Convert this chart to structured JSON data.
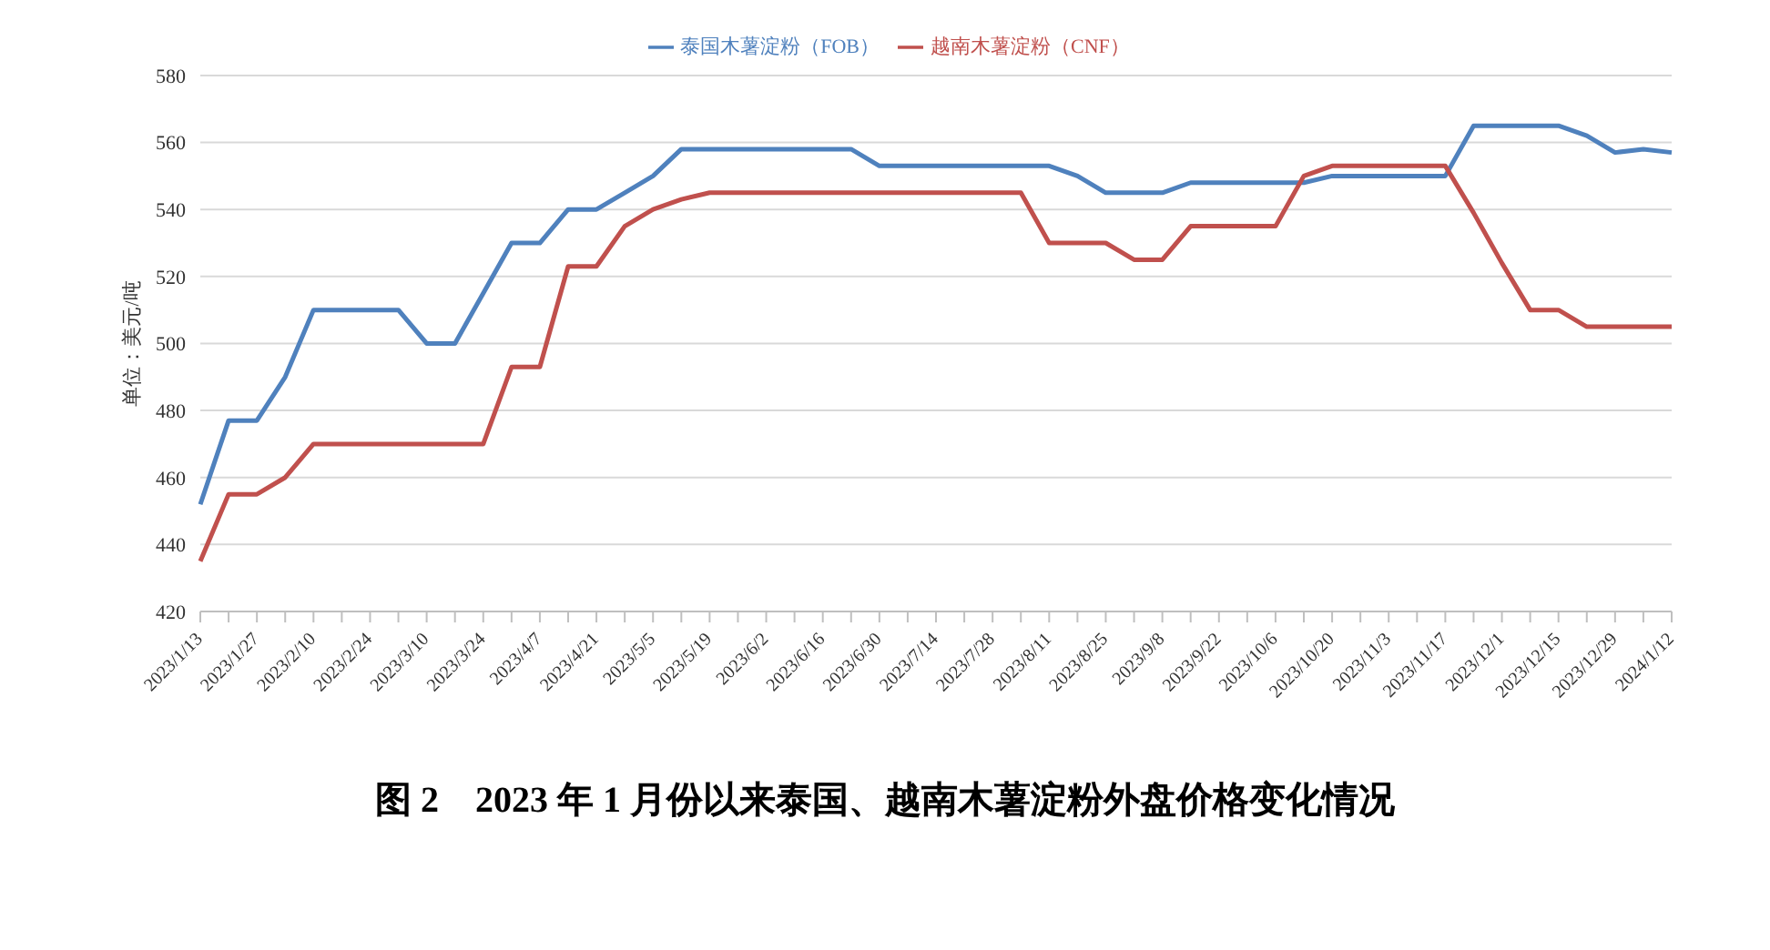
{
  "chart_data": {
    "type": "line",
    "title": "图 2　2023 年 1 月份以来泰国、越南木薯淀粉外盘价格变化情况",
    "ylabel": "单位：美元/吨",
    "categories": [
      "2023/1/13",
      null,
      "2023/1/27",
      null,
      "2023/2/10",
      null,
      "2023/2/24",
      null,
      "2023/3/10",
      null,
      "2023/3/24",
      null,
      "2023/4/7",
      null,
      "2023/4/21",
      null,
      "2023/5/5",
      null,
      "2023/5/19",
      null,
      "2023/6/2",
      null,
      "2023/6/16",
      null,
      "2023/6/30",
      null,
      "2023/7/14",
      null,
      "2023/7/28",
      null,
      "2023/8/11",
      null,
      "2023/8/25",
      null,
      "2023/9/8",
      null,
      "2023/9/22",
      null,
      "2023/10/6",
      null,
      "2023/10/20",
      null,
      "2023/11/3",
      null,
      "2023/11/17",
      null,
      "2023/12/1",
      null,
      "2023/12/15",
      null,
      "2023/12/29",
      null,
      "2024/1/12"
    ],
    "series": [
      {
        "name": "泰国木薯淀粉（FOB）",
        "color": "#4f81bd",
        "values": [
          452,
          477,
          477,
          490,
          510,
          510,
          510,
          510,
          500,
          500,
          515,
          530,
          530,
          540,
          540,
          545,
          550,
          558,
          558,
          558,
          558,
          558,
          558,
          558,
          553,
          553,
          553,
          553,
          553,
          553,
          553,
          550,
          545,
          545,
          545,
          548,
          548,
          548,
          548,
          548,
          550,
          550,
          550,
          550,
          550,
          565,
          565,
          565,
          565,
          562,
          557,
          558,
          557
        ]
      },
      {
        "name": "越南木薯淀粉（CNF）",
        "color": "#c0504d",
        "values": [
          435,
          455,
          455,
          460,
          470,
          470,
          470,
          470,
          470,
          470,
          470,
          493,
          493,
          523,
          523,
          535,
          540,
          543,
          545,
          545,
          545,
          545,
          545,
          545,
          545,
          545,
          545,
          545,
          545,
          545,
          530,
          530,
          530,
          525,
          525,
          535,
          535,
          535,
          535,
          550,
          553,
          553,
          553,
          553,
          553,
          539,
          524,
          510,
          510,
          505,
          505,
          505,
          505
        ]
      }
    ],
    "ylim": [
      420,
      580
    ],
    "yticks": [
      420,
      440,
      460,
      480,
      500,
      520,
      540,
      560,
      580
    ],
    "grid": "y",
    "legend": "top",
    "marker": "none",
    "line_style": "solid"
  }
}
